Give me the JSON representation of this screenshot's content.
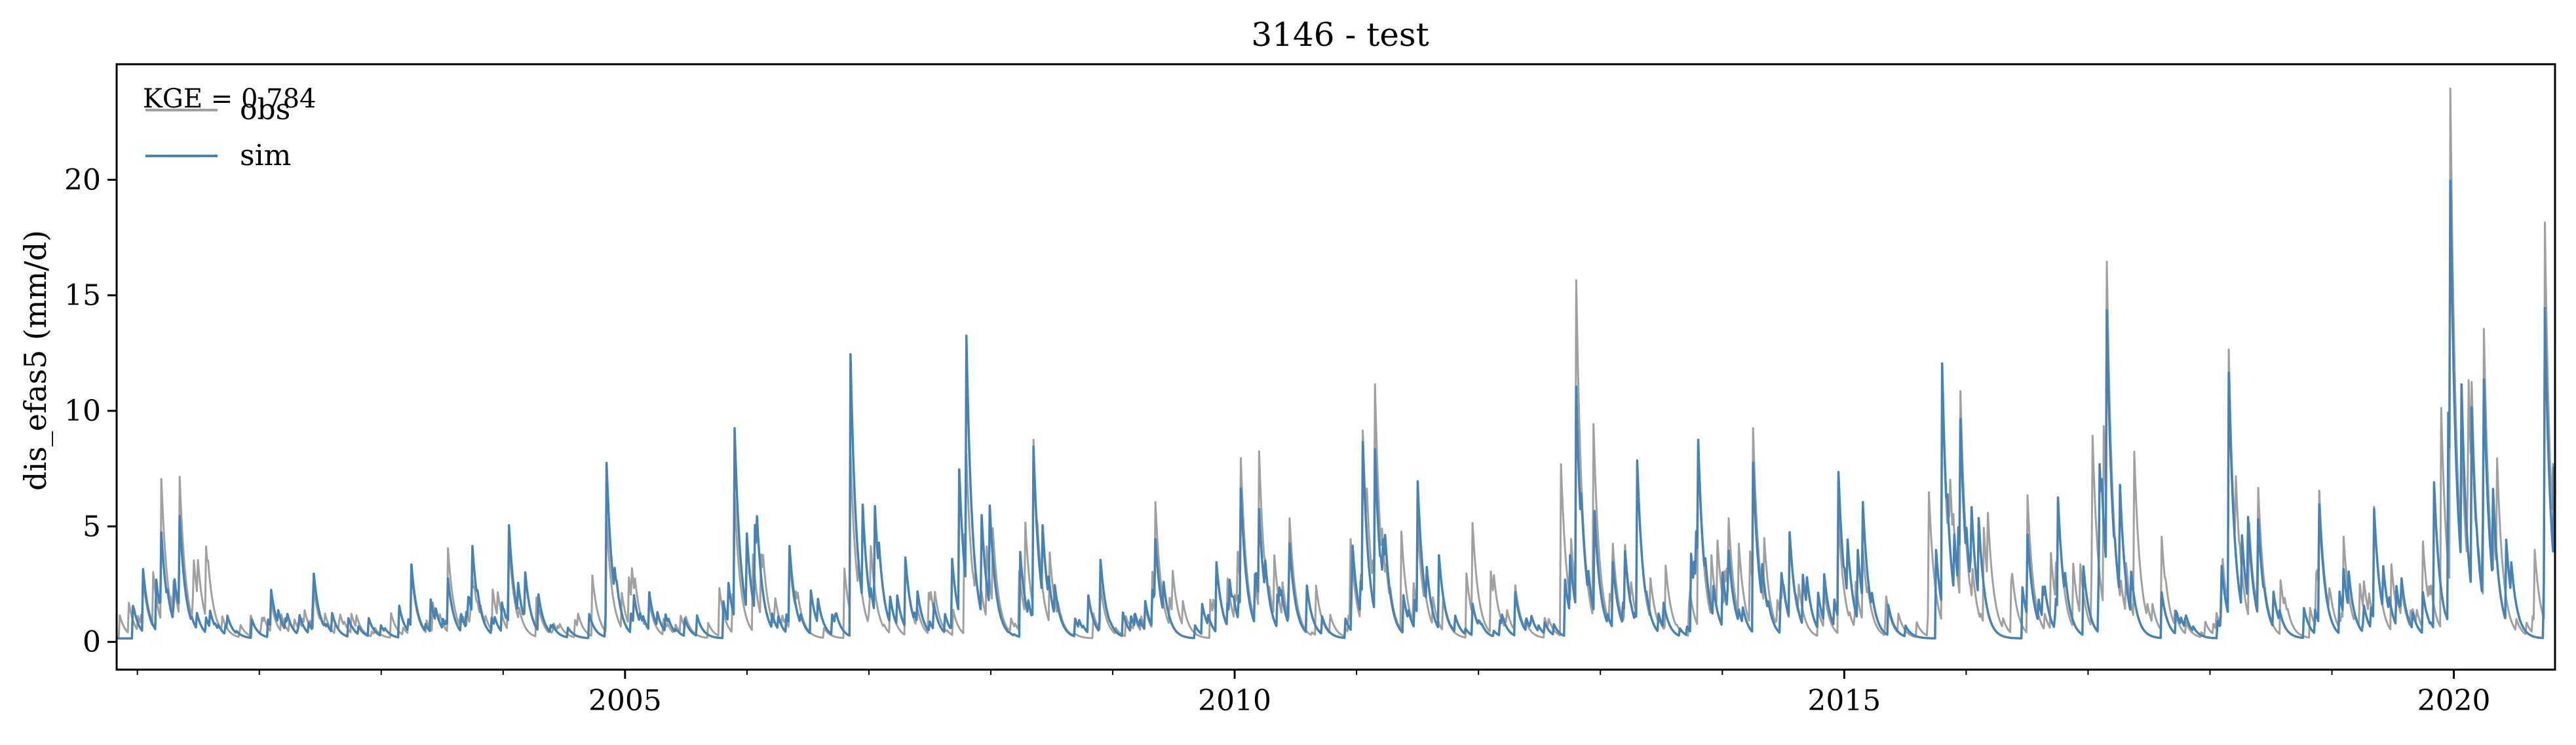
{
  "chart_data": {
    "type": "line",
    "title": "3146 - test",
    "xlabel": "",
    "ylabel": "dis_efas5 (mm/d)",
    "xlim": [
      2000.83,
      2020.83
    ],
    "ylim": [
      -1.2,
      25.0
    ],
    "x_ticks": [
      2005,
      2010,
      2015,
      2020
    ],
    "x_tick_labels": [
      "2005",
      "2010",
      "2015",
      "2020"
    ],
    "y_ticks": [
      0,
      5,
      10,
      15,
      20
    ],
    "y_tick_labels": [
      "0",
      "5",
      "10",
      "15",
      "20"
    ],
    "grid": false,
    "legend_position": "top-left",
    "annotation": "KGE = 0.784",
    "baseline": 0.15,
    "series": [
      {
        "name": "obs",
        "color": "#a0a0a0",
        "peaks": [
          [
            2001.05,
            2.6
          ],
          [
            2001.2,
            6.9
          ],
          [
            2001.35,
            7.0
          ],
          [
            2001.6,
            1.4
          ],
          [
            2002.1,
            1.6
          ],
          [
            2002.45,
            2.2
          ],
          [
            2003.25,
            2.9
          ],
          [
            2003.55,
            3.9
          ],
          [
            2003.75,
            2.6
          ],
          [
            2004.05,
            4.1
          ],
          [
            2004.3,
            1.2
          ],
          [
            2004.85,
            5.2
          ],
          [
            2005.2,
            1.6
          ],
          [
            2005.9,
            6.2
          ],
          [
            2006.35,
            3.5
          ],
          [
            2006.85,
            8.0
          ],
          [
            2007.3,
            3.4
          ],
          [
            2007.8,
            8.0
          ],
          [
            2008.35,
            8.6
          ],
          [
            2008.9,
            2.3
          ],
          [
            2009.35,
            5.9
          ],
          [
            2009.85,
            3.2
          ],
          [
            2010.05,
            7.8
          ],
          [
            2010.2,
            8.1
          ],
          [
            2010.45,
            5.2
          ],
          [
            2011.05,
            9.0
          ],
          [
            2011.15,
            11.0
          ],
          [
            2011.5,
            5.0
          ],
          [
            2011.95,
            5.0
          ],
          [
            2012.3,
            2.3
          ],
          [
            2012.8,
            15.5
          ],
          [
            2013.1,
            4.1
          ],
          [
            2013.3,
            7.5
          ],
          [
            2013.8,
            8.3
          ],
          [
            2014.05,
            5.2
          ],
          [
            2014.25,
            9.1
          ],
          [
            2014.55,
            4.5
          ],
          [
            2014.95,
            5.3
          ],
          [
            2015.15,
            3.9
          ],
          [
            2015.8,
            11.5
          ],
          [
            2015.95,
            10.7
          ],
          [
            2016.5,
            6.2
          ],
          [
            2016.75,
            6.0
          ],
          [
            2017.15,
            16.3
          ],
          [
            2017.6,
            4.4
          ],
          [
            2018.15,
            12.5
          ],
          [
            2018.4,
            5.2
          ],
          [
            2018.9,
            6.4
          ],
          [
            2019.1,
            4.4
          ],
          [
            2019.35,
            5.7
          ],
          [
            2019.75,
            4.2
          ],
          [
            2019.97,
            23.8
          ],
          [
            2020.15,
            11.1
          ],
          [
            2020.25,
            13.4
          ],
          [
            2020.75,
            18.0
          ]
        ]
      },
      {
        "name": "sim",
        "color": "#4682b4",
        "peaks": [
          [
            2001.05,
            3.0
          ],
          [
            2001.2,
            4.6
          ],
          [
            2001.35,
            5.3
          ],
          [
            2001.6,
            1.2
          ],
          [
            2002.1,
            2.1
          ],
          [
            2002.45,
            2.8
          ],
          [
            2003.25,
            3.2
          ],
          [
            2003.55,
            2.6
          ],
          [
            2003.75,
            4.0
          ],
          [
            2004.05,
            4.9
          ],
          [
            2004.3,
            1.0
          ],
          [
            2004.85,
            7.6
          ],
          [
            2005.2,
            2.0
          ],
          [
            2005.9,
            9.1
          ],
          [
            2006.35,
            4.0
          ],
          [
            2006.85,
            12.3
          ],
          [
            2007.3,
            3.5
          ],
          [
            2007.8,
            13.1
          ],
          [
            2008.35,
            8.3
          ],
          [
            2008.9,
            3.4
          ],
          [
            2009.35,
            4.3
          ],
          [
            2009.85,
            3.3
          ],
          [
            2010.05,
            6.5
          ],
          [
            2010.2,
            5.6
          ],
          [
            2010.45,
            4.1
          ],
          [
            2011.05,
            8.5
          ],
          [
            2011.15,
            8.2
          ],
          [
            2011.5,
            6.8
          ],
          [
            2011.95,
            1.5
          ],
          [
            2012.3,
            2.0
          ],
          [
            2012.8,
            10.9
          ],
          [
            2013.1,
            3.3
          ],
          [
            2013.3,
            7.7
          ],
          [
            2013.8,
            8.6
          ],
          [
            2014.05,
            3.8
          ],
          [
            2014.25,
            7.6
          ],
          [
            2014.55,
            4.6
          ],
          [
            2014.95,
            7.2
          ],
          [
            2015.15,
            5.9
          ],
          [
            2015.8,
            11.9
          ],
          [
            2015.95,
            9.5
          ],
          [
            2016.5,
            4.5
          ],
          [
            2016.75,
            6.1
          ],
          [
            2017.15,
            14.2
          ],
          [
            2017.6,
            2.0
          ],
          [
            2018.15,
            11.5
          ],
          [
            2018.4,
            4.3
          ],
          [
            2018.9,
            5.8
          ],
          [
            2019.1,
            3.0
          ],
          [
            2019.35,
            5.6
          ],
          [
            2019.75,
            2.0
          ],
          [
            2019.97,
            19.8
          ],
          [
            2020.15,
            10.0
          ],
          [
            2020.25,
            11.2
          ],
          [
            2020.75,
            14.3
          ]
        ]
      }
    ]
  }
}
